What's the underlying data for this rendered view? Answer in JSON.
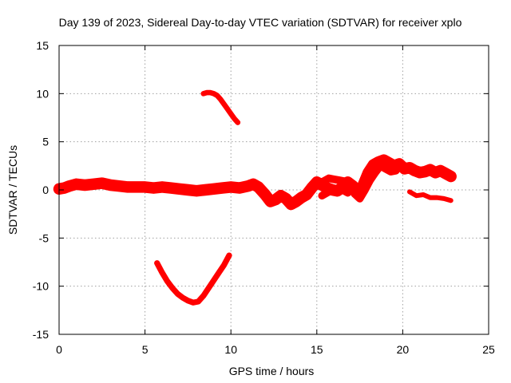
{
  "chart_data": {
    "type": "line",
    "title": "Day 139 of 2023, Sidereal Day-to-day VTEC variation (SDTVAR) for receiver xplo",
    "xlabel": "GPS time / hours",
    "ylabel": "SDTVAR / TECUs",
    "xlim": [
      0,
      25
    ],
    "ylim": [
      -15,
      15
    ],
    "xticks": [
      0,
      5,
      10,
      15,
      20,
      25
    ],
    "yticks": [
      -15,
      -10,
      -5,
      0,
      5,
      10,
      15
    ],
    "xtick_labels": [
      "0",
      "5",
      "10",
      "15",
      "20",
      "25"
    ],
    "ytick_labels": [
      "-15",
      "-10",
      "-5",
      "0",
      "5",
      "10",
      "15"
    ],
    "grid": true,
    "color": "#ff0000",
    "series": [
      {
        "name": "main-band",
        "thickness": 1.2,
        "x": [
          0.0,
          0.3,
          0.6,
          1.0,
          1.5,
          2.0,
          2.5,
          3.0,
          3.5,
          4.0,
          4.5,
          5.0,
          5.5,
          6.0,
          6.5,
          7.0,
          7.5,
          8.0,
          8.5,
          9.0,
          9.5,
          10.0,
          10.5,
          11.0,
          11.3,
          11.6,
          12.0,
          12.3,
          12.6,
          12.9,
          13.2,
          13.5,
          13.8,
          14.1,
          14.4,
          14.7,
          15.0,
          15.3,
          15.6,
          15.9,
          16.2,
          16.5,
          16.8,
          17.1,
          17.4,
          17.7,
          18.0,
          18.3,
          18.6,
          18.9,
          19.2,
          19.5,
          19.8,
          20.1,
          20.4,
          20.7,
          21.0,
          21.3,
          21.6,
          21.9,
          22.2,
          22.5,
          22.8
        ],
        "y": [
          0.1,
          0.2,
          0.4,
          0.6,
          0.5,
          0.6,
          0.7,
          0.5,
          0.4,
          0.3,
          0.3,
          0.3,
          0.2,
          0.3,
          0.2,
          0.1,
          0.0,
          -0.1,
          0.0,
          0.1,
          0.2,
          0.3,
          0.2,
          0.4,
          0.6,
          0.3,
          -0.5,
          -1.2,
          -1.0,
          -0.6,
          -0.9,
          -1.5,
          -1.2,
          -0.8,
          -0.5,
          0.2,
          0.8,
          0.5,
          0.2,
          0.0,
          -0.1,
          0.3,
          0.8,
          0.4,
          -0.4,
          0.5,
          1.8,
          2.6,
          2.9,
          3.1,
          2.8,
          2.5,
          2.7,
          2.2,
          2.3,
          2.0,
          1.8,
          1.9,
          2.1,
          1.8,
          2.0,
          1.7,
          1.4
        ]
      },
      {
        "name": "secondary-band",
        "thickness": 0.8,
        "x": [
          14.8,
          15.1,
          15.4,
          15.7,
          16.0,
          16.3,
          16.6,
          16.9,
          17.2,
          17.5,
          17.8,
          18.1,
          18.4,
          18.7,
          19.0,
          19.3,
          19.6
        ],
        "y": [
          0.3,
          0.7,
          0.9,
          1.2,
          1.1,
          1.0,
          0.9,
          0.6,
          -0.4,
          -0.9,
          0.0,
          1.0,
          1.8,
          2.5,
          2.2,
          1.9,
          2.0
        ]
      },
      {
        "name": "secondary-band-2",
        "thickness": 0.8,
        "x": [
          15.3,
          15.6,
          15.9,
          16.2,
          16.5,
          16.8
        ],
        "y": [
          -0.6,
          -0.3,
          0.0,
          0.1,
          0.0,
          -0.3
        ]
      },
      {
        "name": "upper-arc",
        "thickness": 0.55,
        "x": [
          8.4,
          8.6,
          8.8,
          9.0,
          9.2,
          9.4,
          9.6,
          9.8,
          10.0,
          10.2,
          10.4
        ],
        "y": [
          10.0,
          10.1,
          10.1,
          10.0,
          9.8,
          9.4,
          8.9,
          8.4,
          7.9,
          7.4,
          7.0
        ]
      },
      {
        "name": "lower-arc",
        "thickness": 0.6,
        "x": [
          5.7,
          6.0,
          6.3,
          6.6,
          6.9,
          7.2,
          7.5,
          7.8,
          8.1,
          8.4,
          8.7,
          9.0,
          9.3,
          9.6,
          9.9
        ],
        "y": [
          -7.6,
          -8.6,
          -9.5,
          -10.2,
          -10.8,
          -11.2,
          -11.5,
          -11.7,
          -11.6,
          -11.0,
          -10.2,
          -9.4,
          -8.6,
          -7.8,
          -6.8
        ]
      },
      {
        "name": "lower-right-segment",
        "thickness": 0.5,
        "x": [
          20.4,
          20.8,
          21.2,
          21.6,
          22.0,
          22.4,
          22.8
        ],
        "y": [
          -0.2,
          -0.6,
          -0.5,
          -0.8,
          -0.8,
          -0.9,
          -1.1
        ]
      }
    ]
  }
}
